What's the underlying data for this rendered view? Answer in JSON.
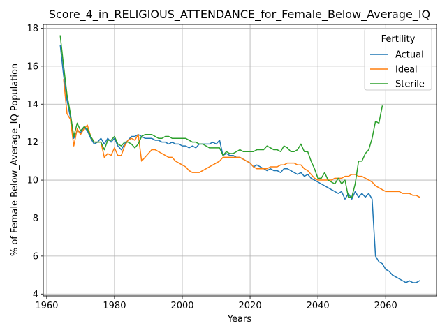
{
  "chart_data": {
    "type": "line",
    "title": "Score_4_in_RELIGIOUS_ATTENDANCE_for_Female_Below_Average_IQ",
    "xlabel": "Years",
    "ylabel": "% of Female Below_Average_IQ Population",
    "xlim": [
      1959,
      2075
    ],
    "ylim": [
      3.9,
      18.2
    ],
    "xticks": [
      1960,
      1980,
      2000,
      2020,
      2040,
      2060
    ],
    "yticks": [
      4,
      6,
      8,
      10,
      12,
      14,
      16,
      18
    ],
    "grid": true,
    "legend": {
      "title": "Fertility",
      "position": "top-right"
    },
    "series": [
      {
        "name": "Actual",
        "color": "#1f77b4",
        "x": [
          1964,
          1965,
          1966,
          1967,
          1968,
          1969,
          1970,
          1971,
          1972,
          1973,
          1974,
          1975,
          1976,
          1977,
          1978,
          1979,
          1980,
          1981,
          1982,
          1983,
          1984,
          1985,
          1986,
          1987,
          1988,
          1989,
          1990,
          1991,
          1992,
          1993,
          1994,
          1995,
          1996,
          1997,
          1998,
          1999,
          2000,
          2001,
          2002,
          2003,
          2004,
          2005,
          2006,
          2007,
          2008,
          2009,
          2010,
          2011,
          2012,
          2013,
          2014,
          2015,
          2016,
          2017,
          2018,
          2019,
          2020,
          2021,
          2022,
          2023,
          2024,
          2025,
          2026,
          2027,
          2028,
          2029,
          2030,
          2031,
          2032,
          2033,
          2034,
          2035,
          2036,
          2037,
          2038,
          2039,
          2040,
          2041,
          2042,
          2043,
          2044,
          2045,
          2046,
          2047,
          2048,
          2049,
          2050,
          2051,
          2052,
          2053,
          2054,
          2055,
          2056,
          2057,
          2058,
          2059,
          2060,
          2061,
          2062,
          2063,
          2064,
          2065,
          2066,
          2067,
          2068,
          2069,
          2070
        ],
        "y": [
          17.1,
          15.5,
          14.2,
          13.3,
          12.2,
          12.6,
          12.5,
          12.8,
          12.6,
          12.2,
          11.9,
          12.0,
          12.2,
          11.9,
          12.2,
          12.0,
          12.2,
          11.8,
          11.6,
          11.9,
          12.1,
          12.3,
          12.3,
          12.4,
          12.3,
          12.2,
          12.2,
          12.2,
          12.1,
          12.1,
          12.0,
          12.0,
          11.9,
          12.0,
          11.9,
          11.9,
          11.8,
          11.8,
          11.7,
          11.8,
          11.7,
          11.9,
          11.9,
          11.9,
          11.9,
          12.0,
          11.9,
          12.1,
          11.3,
          11.4,
          11.3,
          11.3,
          11.2,
          11.2,
          11.1,
          11.0,
          10.9,
          10.7,
          10.8,
          10.7,
          10.6,
          10.5,
          10.6,
          10.5,
          10.5,
          10.4,
          10.6,
          10.6,
          10.5,
          10.4,
          10.3,
          10.4,
          10.2,
          10.3,
          10.1,
          10.0,
          9.9,
          9.8,
          9.7,
          9.6,
          9.5,
          9.4,
          9.3,
          9.4,
          9.0,
          9.3,
          9.0,
          9.4,
          9.1,
          9.3,
          9.1,
          9.3,
          9.0,
          6.0,
          5.7,
          5.6,
          5.3,
          5.2,
          5.0,
          4.9,
          4.8,
          4.7,
          4.6,
          4.7,
          4.6,
          4.6,
          4.7
        ]
      },
      {
        "name": "Ideal",
        "color": "#ff7f0e",
        "x": [
          1965,
          1966,
          1967,
          1968,
          1969,
          1970,
          1971,
          1972,
          1973,
          1974,
          1975,
          1976,
          1977,
          1978,
          1979,
          1980,
          1981,
          1982,
          1983,
          1984,
          1985,
          1986,
          1987,
          1988,
          1989,
          1990,
          1991,
          1992,
          1993,
          1994,
          1995,
          1996,
          1997,
          1998,
          1999,
          2000,
          2001,
          2002,
          2003,
          2004,
          2005,
          2006,
          2007,
          2008,
          2009,
          2010,
          2011,
          2012,
          2013,
          2014,
          2015,
          2016,
          2017,
          2018,
          2019,
          2020,
          2021,
          2022,
          2023,
          2024,
          2025,
          2026,
          2027,
          2028,
          2029,
          2030,
          2031,
          2032,
          2033,
          2034,
          2035,
          2036,
          2037,
          2038,
          2039,
          2040,
          2041,
          2042,
          2043,
          2044,
          2045,
          2046,
          2047,
          2048,
          2049,
          2050,
          2051,
          2052,
          2053,
          2054,
          2055,
          2056,
          2057,
          2058,
          2059,
          2060,
          2061,
          2062,
          2063,
          2064,
          2065,
          2066,
          2067,
          2068,
          2069,
          2070
        ],
        "y": [
          15.3,
          13.5,
          13.2,
          11.8,
          12.7,
          12.4,
          12.7,
          12.9,
          12.3,
          12.0,
          12.0,
          12.0,
          11.2,
          11.4,
          11.3,
          11.7,
          11.3,
          11.3,
          11.8,
          12.1,
          12.2,
          12.1,
          12.4,
          11.0,
          11.2,
          11.4,
          11.6,
          11.6,
          11.5,
          11.4,
          11.3,
          11.2,
          11.2,
          11.0,
          10.9,
          10.8,
          10.7,
          10.5,
          10.4,
          10.4,
          10.4,
          10.5,
          10.6,
          10.7,
          10.8,
          10.9,
          11.0,
          11.2,
          11.2,
          11.2,
          11.2,
          11.2,
          11.2,
          11.1,
          11.0,
          10.9,
          10.7,
          10.6,
          10.6,
          10.6,
          10.6,
          10.7,
          10.7,
          10.7,
          10.8,
          10.8,
          10.9,
          10.9,
          10.9,
          10.8,
          10.8,
          10.6,
          10.5,
          10.3,
          10.1,
          10.0,
          10.0,
          10.0,
          10.0,
          10.0,
          10.1,
          10.1,
          10.1,
          10.2,
          10.2,
          10.3,
          10.3,
          10.2,
          10.2,
          10.1,
          10.0,
          9.9,
          9.7,
          9.6,
          9.5,
          9.4,
          9.4,
          9.4,
          9.4,
          9.4,
          9.3,
          9.3,
          9.3,
          9.2,
          9.2,
          9.1
        ]
      },
      {
        "name": "Sterile",
        "color": "#2ca02c",
        "x": [
          1964,
          1965,
          1966,
          1967,
          1968,
          1969,
          1970,
          1971,
          1972,
          1973,
          1974,
          1975,
          1976,
          1977,
          1978,
          1979,
          1980,
          1981,
          1982,
          1983,
          1984,
          1985,
          1986,
          1987,
          1988,
          1989,
          1990,
          1991,
          1992,
          1993,
          1994,
          1995,
          1996,
          1997,
          1998,
          1999,
          2000,
          2001,
          2002,
          2003,
          2004,
          2005,
          2006,
          2007,
          2008,
          2009,
          2010,
          2011,
          2012,
          2013,
          2014,
          2015,
          2016,
          2017,
          2018,
          2019,
          2020,
          2021,
          2022,
          2023,
          2024,
          2025,
          2026,
          2027,
          2028,
          2029,
          2030,
          2031,
          2032,
          2033,
          2034,
          2035,
          2036,
          2037,
          2038,
          2039,
          2040,
          2041,
          2042,
          2043,
          2044,
          2045,
          2046,
          2047,
          2048,
          2049,
          2050,
          2051,
          2052,
          2053,
          2054,
          2055,
          2056,
          2057,
          2058,
          2059
        ],
        "y": [
          17.6,
          16.0,
          14.5,
          13.5,
          12.3,
          13.0,
          12.6,
          12.8,
          12.7,
          12.3,
          12.0,
          12.0,
          12.0,
          11.6,
          12.1,
          12.1,
          12.3,
          11.9,
          11.8,
          12.0,
          12.0,
          11.9,
          11.7,
          11.9,
          12.3,
          12.4,
          12.4,
          12.4,
          12.3,
          12.2,
          12.2,
          12.3,
          12.3,
          12.2,
          12.2,
          12.2,
          12.2,
          12.2,
          12.1,
          12.0,
          12.0,
          11.9,
          11.9,
          11.8,
          11.7,
          11.7,
          11.7,
          11.7,
          11.3,
          11.5,
          11.4,
          11.4,
          11.5,
          11.6,
          11.5,
          11.5,
          11.5,
          11.5,
          11.6,
          11.6,
          11.6,
          11.8,
          11.7,
          11.6,
          11.6,
          11.5,
          11.8,
          11.7,
          11.5,
          11.5,
          11.6,
          11.9,
          11.5,
          11.5,
          11.0,
          10.6,
          10.1,
          10.1,
          10.4,
          10.0,
          9.9,
          9.8,
          10.1,
          9.8,
          10.0,
          9.1,
          9.1,
          9.8,
          11.0,
          11.0,
          11.4,
          11.6,
          12.2,
          13.1,
          13.0,
          13.9
        ]
      }
    ]
  }
}
